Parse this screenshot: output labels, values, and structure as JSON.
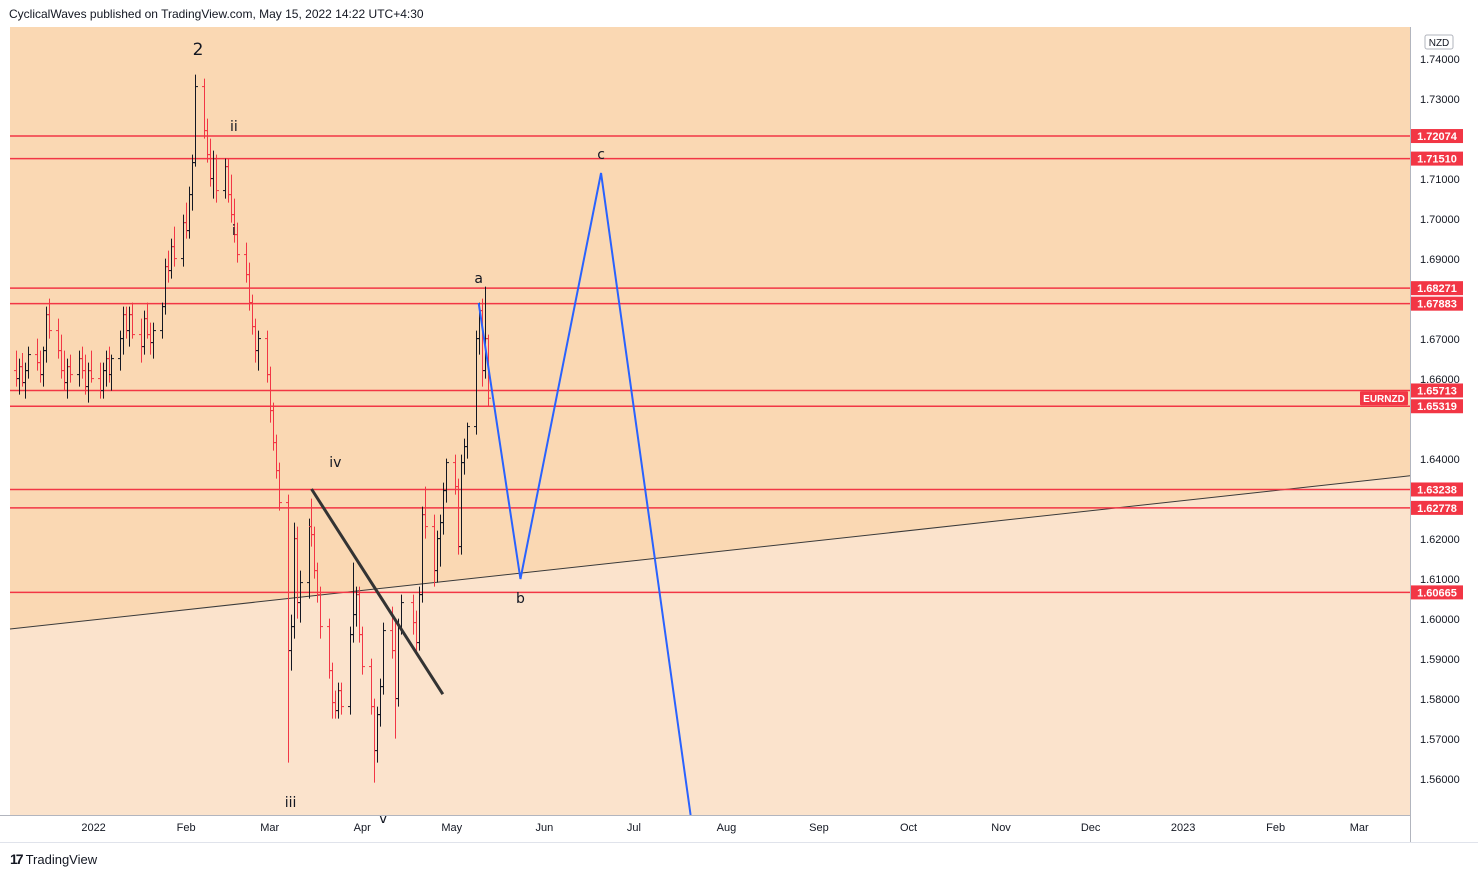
{
  "header": {
    "published_text": "CyclicalWaves published on TradingView.com, May 15, 2022 14:22 UTC+4:30"
  },
  "footer": {
    "brand": "TradingView",
    "brand_mark": "17"
  },
  "colors": {
    "zone_upper": "#fad8b3",
    "zone_lower": "#fbe3cc",
    "resistance_line": "#f23645",
    "projection_line": "#2962ff",
    "trend_line": "#333333",
    "candle_up": "#131722",
    "candle_down": "#f23645",
    "label_bg": "#f23645"
  },
  "chart_data": {
    "type": "ohlc",
    "symbol": "EURNZD",
    "currency": "NZD",
    "ylim": [
      1.551,
      1.748
    ],
    "y_ticks": [
      "1.74000",
      "1.73000",
      "1.71000",
      "1.70000",
      "1.69000",
      "1.67000",
      "1.66000",
      "1.64000",
      "1.62000",
      "1.61000",
      "1.60000",
      "1.59000",
      "1.58000",
      "1.57000",
      "1.56000"
    ],
    "x_ticks": [
      "2022",
      "Feb",
      "Mar",
      "Apr",
      "May",
      "Jun",
      "Jul",
      "Aug",
      "Sep",
      "Oct",
      "Nov",
      "Dec",
      "2023",
      "Feb",
      "Mar"
    ],
    "x_range": [
      "2021-12-04",
      "2023-03-18"
    ],
    "last_price_label": "EURNZD",
    "last_price": 1.6552,
    "levels": [
      {
        "value": 1.72074,
        "label": "1.72074"
      },
      {
        "value": 1.7151,
        "label": "1.71510"
      },
      {
        "value": 1.68271,
        "label": "1.68271"
      },
      {
        "value": 1.67883,
        "label": "1.67883"
      },
      {
        "value": 1.65713,
        "label": "1.65713"
      },
      {
        "value": 1.65319,
        "label": "1.65319"
      },
      {
        "value": 1.63238,
        "label": "1.63238"
      },
      {
        "value": 1.62778,
        "label": "1.62778"
      },
      {
        "value": 1.60665,
        "label": "1.60665"
      }
    ],
    "zone_boundary": [
      {
        "x": "2021-12-04",
        "y": 1.5975
      },
      {
        "x": "2023-03-18",
        "y": 1.6358
      }
    ],
    "trend_line": [
      {
        "x": "2022-03-15",
        "y": 1.6325
      },
      {
        "x": "2022-04-28",
        "y": 1.5812
      }
    ],
    "projection": [
      {
        "x": "2022-05-10",
        "y": 1.679
      },
      {
        "x": "2022-05-24",
        "y": 1.61
      },
      {
        "x": "2022-06-20",
        "y": 1.7115
      },
      {
        "x": "2022-07-20",
        "y": 1.551
      }
    ],
    "wave_labels": [
      {
        "text": "2",
        "x": "2022-02-05",
        "y": 1.741
      },
      {
        "text": "ii",
        "x": "2022-02-17",
        "y": 1.722
      },
      {
        "text": "i",
        "x": "2022-02-17",
        "y": 1.696
      },
      {
        "text": "iv",
        "x": "2022-03-23",
        "y": 1.638
      },
      {
        "text": "iii",
        "x": "2022-03-08",
        "y": 1.553
      },
      {
        "text": "v",
        "x": "2022-04-08",
        "y": 1.549
      },
      {
        "text": "a",
        "x": "2022-05-10",
        "y": 1.684
      },
      {
        "text": "b",
        "x": "2022-05-24",
        "y": 1.604
      },
      {
        "text": "c",
        "x": "2022-06-20",
        "y": 1.715
      }
    ],
    "ohlc": [
      [
        "2021-12-06",
        1.6621,
        1.6671,
        1.6581,
        1.6601
      ],
      [
        "2021-12-07",
        1.6601,
        1.6651,
        1.6561,
        1.6631
      ],
      [
        "2021-12-08",
        1.6631,
        1.6665,
        1.6581,
        1.6591
      ],
      [
        "2021-12-09",
        1.6591,
        1.6641,
        1.6551,
        1.6621
      ],
      [
        "2021-12-10",
        1.6621,
        1.6681,
        1.6601,
        1.6661
      ],
      [
        "2021-12-13",
        1.6661,
        1.6701,
        1.6621,
        1.6641
      ],
      [
        "2021-12-14",
        1.6641,
        1.6671,
        1.6591,
        1.6611
      ],
      [
        "2021-12-15",
        1.6611,
        1.6681,
        1.6581,
        1.6671
      ],
      [
        "2021-12-16",
        1.6671,
        1.6781,
        1.6641,
        1.6761
      ],
      [
        "2021-12-17",
        1.6761,
        1.6801,
        1.6701,
        1.6721
      ],
      [
        "2021-12-20",
        1.6721,
        1.6751,
        1.6651,
        1.6671
      ],
      [
        "2021-12-21",
        1.6671,
        1.6711,
        1.6601,
        1.6621
      ],
      [
        "2021-12-22",
        1.6621,
        1.6671,
        1.6571,
        1.6591
      ],
      [
        "2021-12-23",
        1.6591,
        1.6651,
        1.6551,
        1.6631
      ],
      [
        "2021-12-24",
        1.6631,
        1.6661,
        1.6591,
        1.6611
      ],
      [
        "2021-12-27",
        1.6611,
        1.6671,
        1.6581,
        1.6651
      ],
      [
        "2021-12-28",
        1.6651,
        1.6681,
        1.6601,
        1.6621
      ],
      [
        "2021-12-29",
        1.6621,
        1.6661,
        1.6561,
        1.6581
      ],
      [
        "2021-12-30",
        1.6581,
        1.6641,
        1.6541,
        1.6621
      ],
      [
        "2021-12-31",
        1.6621,
        1.6671,
        1.6591,
        1.6601
      ],
      [
        "2022-01-03",
        1.6601,
        1.6641,
        1.6551,
        1.6571
      ],
      [
        "2022-01-04",
        1.6571,
        1.6641,
        1.6551,
        1.6621
      ],
      [
        "2022-01-05",
        1.6621,
        1.6671,
        1.6581,
        1.6651
      ],
      [
        "2022-01-06",
        1.6651,
        1.6681,
        1.6591,
        1.6611
      ],
      [
        "2022-01-07",
        1.6611,
        1.6661,
        1.6571,
        1.6651
      ],
      [
        "2022-01-10",
        1.6651,
        1.6721,
        1.6621,
        1.6701
      ],
      [
        "2022-01-11",
        1.6701,
        1.6781,
        1.6661,
        1.6761
      ],
      [
        "2022-01-12",
        1.6761,
        1.6781,
        1.6701,
        1.6721
      ],
      [
        "2022-01-13",
        1.6721,
        1.6781,
        1.6681,
        1.6761
      ],
      [
        "2022-01-14",
        1.6761,
        1.6791,
        1.6701,
        1.6711
      ],
      [
        "2022-01-17",
        1.6711,
        1.6751,
        1.6641,
        1.6681
      ],
      [
        "2022-01-18",
        1.6681,
        1.6771,
        1.6661,
        1.6751
      ],
      [
        "2022-01-19",
        1.6751,
        1.6791,
        1.6701,
        1.6711
      ],
      [
        "2022-01-20",
        1.6711,
        1.6741,
        1.6661,
        1.6691
      ],
      [
        "2022-01-21",
        1.6691,
        1.6741,
        1.6651,
        1.6721
      ],
      [
        "2022-01-24",
        1.6721,
        1.6791,
        1.6701,
        1.6781
      ],
      [
        "2022-01-25",
        1.6781,
        1.6901,
        1.6761,
        1.6881
      ],
      [
        "2022-01-26",
        1.6881,
        1.6921,
        1.6841,
        1.6871
      ],
      [
        "2022-01-27",
        1.6871,
        1.6951,
        1.6851,
        1.6931
      ],
      [
        "2022-01-28",
        1.6931,
        1.6981,
        1.6881,
        1.6901
      ],
      [
        "2022-01-31",
        1.6901,
        1.7011,
        1.6881,
        1.6991
      ],
      [
        "2022-02-01",
        1.6991,
        1.7041,
        1.6951,
        1.6971
      ],
      [
        "2022-02-02",
        1.6971,
        1.7081,
        1.6951,
        1.7061
      ],
      [
        "2022-02-03",
        1.7061,
        1.7161,
        1.7021,
        1.7141
      ],
      [
        "2022-02-04",
        1.7141,
        1.7361,
        1.7131,
        1.7331
      ],
      [
        "2022-02-07",
        1.7331,
        1.7351,
        1.7201,
        1.7221
      ],
      [
        "2022-02-08",
        1.7221,
        1.7251,
        1.7141,
        1.7161
      ],
      [
        "2022-02-09",
        1.7161,
        1.7201,
        1.7081,
        1.7101
      ],
      [
        "2022-02-10",
        1.7101,
        1.7171,
        1.7051,
        1.7151
      ],
      [
        "2022-02-11",
        1.7151,
        1.7161,
        1.7041,
        1.7071
      ],
      [
        "2022-02-14",
        1.7071,
        1.7151,
        1.7051,
        1.7131
      ],
      [
        "2022-02-15",
        1.7131,
        1.7151,
        1.7041,
        1.7061
      ],
      [
        "2022-02-16",
        1.7061,
        1.7111,
        1.6991,
        1.7011
      ],
      [
        "2022-02-17",
        1.7011,
        1.7051,
        1.6941,
        1.6961
      ],
      [
        "2022-02-18",
        1.6961,
        1.6991,
        1.6891,
        1.6911
      ],
      [
        "2022-02-21",
        1.6911,
        1.6941,
        1.6841,
        1.6861
      ],
      [
        "2022-02-22",
        1.6861,
        1.6891,
        1.6771,
        1.6791
      ],
      [
        "2022-02-23",
        1.6791,
        1.6811,
        1.6711,
        1.6731
      ],
      [
        "2022-02-24",
        1.6731,
        1.6751,
        1.6641,
        1.6671
      ],
      [
        "2022-02-25",
        1.6671,
        1.6721,
        1.6621,
        1.6701
      ],
      [
        "2022-02-28",
        1.6701,
        1.6721,
        1.6591,
        1.6611
      ],
      [
        "2022-03-01",
        1.6611,
        1.6631,
        1.6491,
        1.6521
      ],
      [
        "2022-03-02",
        1.6521,
        1.6541,
        1.6421,
        1.6441
      ],
      [
        "2022-03-03",
        1.6441,
        1.6461,
        1.6351,
        1.6371
      ],
      [
        "2022-03-04",
        1.6371,
        1.6391,
        1.6271,
        1.6291
      ],
      [
        "2022-03-07",
        1.6291,
        1.6311,
        1.5641,
        1.5921
      ],
      [
        "2022-03-08",
        1.5921,
        1.6011,
        1.5871,
        1.5981
      ],
      [
        "2022-03-09",
        1.5981,
        1.6241,
        1.5951,
        1.6201
      ],
      [
        "2022-03-10",
        1.6201,
        1.6231,
        1.6001,
        1.6041
      ],
      [
        "2022-03-11",
        1.6041,
        1.6121,
        1.5991,
        1.6091
      ],
      [
        "2022-03-14",
        1.6091,
        1.6251,
        1.6051,
        1.6231
      ],
      [
        "2022-03-15",
        1.6231,
        1.6301,
        1.6181,
        1.6211
      ],
      [
        "2022-03-16",
        1.6211,
        1.6231,
        1.6101,
        1.6121
      ],
      [
        "2022-03-17",
        1.6121,
        1.6141,
        1.6041,
        1.6061
      ],
      [
        "2022-03-18",
        1.6061,
        1.6081,
        1.5951,
        1.5981
      ],
      [
        "2022-03-21",
        1.5981,
        1.6001,
        1.5851,
        1.5871
      ],
      [
        "2022-03-22",
        1.5871,
        1.5891,
        1.5751,
        1.5791
      ],
      [
        "2022-03-23",
        1.5791,
        1.5821,
        1.5751,
        1.5771
      ],
      [
        "2022-03-24",
        1.5771,
        1.5841,
        1.5751,
        1.5821
      ],
      [
        "2022-03-25",
        1.5821,
        1.5841,
        1.5761,
        1.5781
      ],
      [
        "2022-03-28",
        1.5781,
        1.5981,
        1.5761,
        1.5961
      ],
      [
        "2022-03-29",
        1.5961,
        1.6141,
        1.5941,
        1.6011
      ],
      [
        "2022-03-30",
        1.6011,
        1.6081,
        1.5981,
        1.6061
      ],
      [
        "2022-03-31",
        1.6061,
        1.6081,
        1.5941,
        1.5961
      ],
      [
        "2022-04-01",
        1.5961,
        1.5981,
        1.5861,
        1.5881
      ],
      [
        "2022-04-04",
        1.5881,
        1.5901,
        1.5761,
        1.5781
      ],
      [
        "2022-04-05",
        1.5781,
        1.5801,
        1.5591,
        1.5671
      ],
      [
        "2022-04-06",
        1.5671,
        1.5781,
        1.5641,
        1.5761
      ],
      [
        "2022-04-07",
        1.5761,
        1.5851,
        1.5731,
        1.5831
      ],
      [
        "2022-04-08",
        1.5831,
        1.5991,
        1.5811,
        1.5971
      ],
      [
        "2022-04-11",
        1.5971,
        1.6031,
        1.5901,
        1.5921
      ],
      [
        "2022-04-12",
        1.5921,
        1.5991,
        1.5701,
        1.5801
      ],
      [
        "2022-04-13",
        1.5801,
        1.6001,
        1.5781,
        1.5981
      ],
      [
        "2022-04-14",
        1.5981,
        1.6061,
        1.5961,
        1.6041
      ],
      [
        "2022-04-18",
        1.6041,
        1.6061,
        1.5961,
        1.5991
      ],
      [
        "2022-04-19",
        1.5991,
        1.6021,
        1.5911,
        1.5941
      ],
      [
        "2022-04-20",
        1.5941,
        1.6081,
        1.5921,
        1.6061
      ],
      [
        "2022-04-21",
        1.6061,
        1.6281,
        1.6041,
        1.6261
      ],
      [
        "2022-04-22",
        1.6261,
        1.6331,
        1.6201,
        1.6231
      ],
      [
        "2022-04-25",
        1.6231,
        1.6261,
        1.6081,
        1.6121
      ],
      [
        "2022-04-26",
        1.6121,
        1.6221,
        1.6091,
        1.6201
      ],
      [
        "2022-04-27",
        1.6201,
        1.6261,
        1.6131,
        1.6241
      ],
      [
        "2022-04-28",
        1.6241,
        1.6341,
        1.6211,
        1.6321
      ],
      [
        "2022-04-29",
        1.6321,
        1.6401,
        1.6291,
        1.6391
      ],
      [
        "2022-05-02",
        1.6391,
        1.6411,
        1.6311,
        1.6331
      ],
      [
        "2022-05-03",
        1.6331,
        1.6351,
        1.6161,
        1.6181
      ],
      [
        "2022-05-04",
        1.6181,
        1.6411,
        1.6161,
        1.6391
      ],
      [
        "2022-05-05",
        1.6391,
        1.6451,
        1.6361,
        1.6431
      ],
      [
        "2022-05-06",
        1.6431,
        1.6491,
        1.6401,
        1.6481
      ],
      [
        "2022-05-09",
        1.6481,
        1.6721,
        1.6461,
        1.6701
      ],
      [
        "2022-05-10",
        1.6701,
        1.6791,
        1.6661,
        1.6771
      ],
      [
        "2022-05-11",
        1.6771,
        1.6801,
        1.6581,
        1.6621
      ],
      [
        "2022-05-12",
        1.6621,
        1.6831,
        1.6601,
        1.6701
      ],
      [
        "2022-05-13",
        1.6701,
        1.6711,
        1.6531,
        1.6552
      ]
    ]
  }
}
